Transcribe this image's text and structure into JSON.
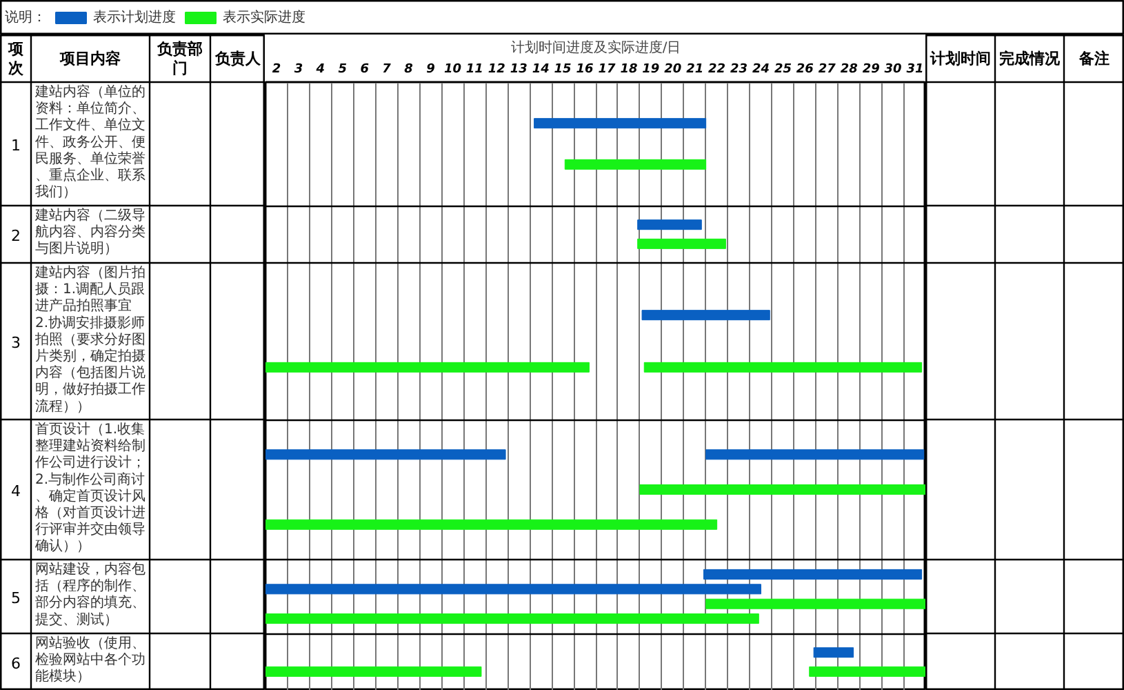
{
  "chart_data": {
    "type": "bar",
    "orientation": "horizontal",
    "categories": [
      "建站内容（单位的资料：单位简介、工作文件、单位文件、政务公开、便民服务、单位荣誉、重点企业、联系我们）",
      "建站内容（二级导航内容、内容分类与图片说明）",
      "建站内容（图片拍摄：1.调配人员跟进产品拍照事宜\n2.协调安排摄影师拍照（要求分好图片类别，确定拍摄内容（包括图片说明，做好拍摄工作流程））",
      "首页设计（1.收集整理建站资料给制作公司进行设计；2.与制作公司商讨、确定首页设计风格（对首页设计进行评审并交由领导确认））",
      "网站建设，内容包括（程序的制作、部分内容的填充、提交、测试）",
      "网站验收（使用、检验网站中各个功能模块）"
    ],
    "xlabel": "计划时间进度及实际进度/日",
    "ylabel": "项目内容",
    "legend_title": "说明：",
    "xlim": [
      1.5,
      31.5
    ],
    "xticks": [
      2,
      3,
      4,
      5,
      6,
      7,
      8,
      9,
      10,
      11,
      12,
      13,
      14,
      15,
      16,
      17,
      18,
      19,
      20,
      21,
      22,
      23,
      24,
      25,
      26,
      27,
      28,
      29,
      30,
      31
    ],
    "grid": true,
    "legend": "top left",
    "series": [
      {
        "name": "表示计划进度",
        "color": "#0a60c2",
        "base": [
          13.7,
          18.4,
          18.6,
          1.5,
          21.4,
          26.4
        ],
        "values": [
          7.8,
          2.9,
          5.8,
          10.9,
          9.9,
          1.8
        ]
      },
      {
        "color": "#0a60c2",
        "base": [
          null,
          null,
          null,
          21.5,
          1.5,
          null
        ],
        "values": [
          null,
          null,
          null,
          9.9,
          22.5,
          null
        ]
      },
      {
        "name": "表示实际进度",
        "color": "#17f217",
        "base": [
          15.1,
          18.4,
          18.7,
          18.5,
          21.5,
          26.2
        ],
        "values": [
          6.4,
          4.0,
          12.6,
          13.0,
          10.0,
          5.3
        ]
      },
      {
        "color": "#17f217",
        "base": [
          null,
          null,
          1.5,
          1.5,
          1.5,
          1.5
        ],
        "values": [
          null,
          null,
          14.7,
          20.5,
          22.4,
          9.8
        ]
      }
    ],
    "annotations": [
      "项次",
      "负责部门",
      "负责人",
      "计划时间",
      "完成情况",
      "备注",
      "1",
      "2",
      "3",
      "4",
      "5",
      "6"
    ]
  }
}
